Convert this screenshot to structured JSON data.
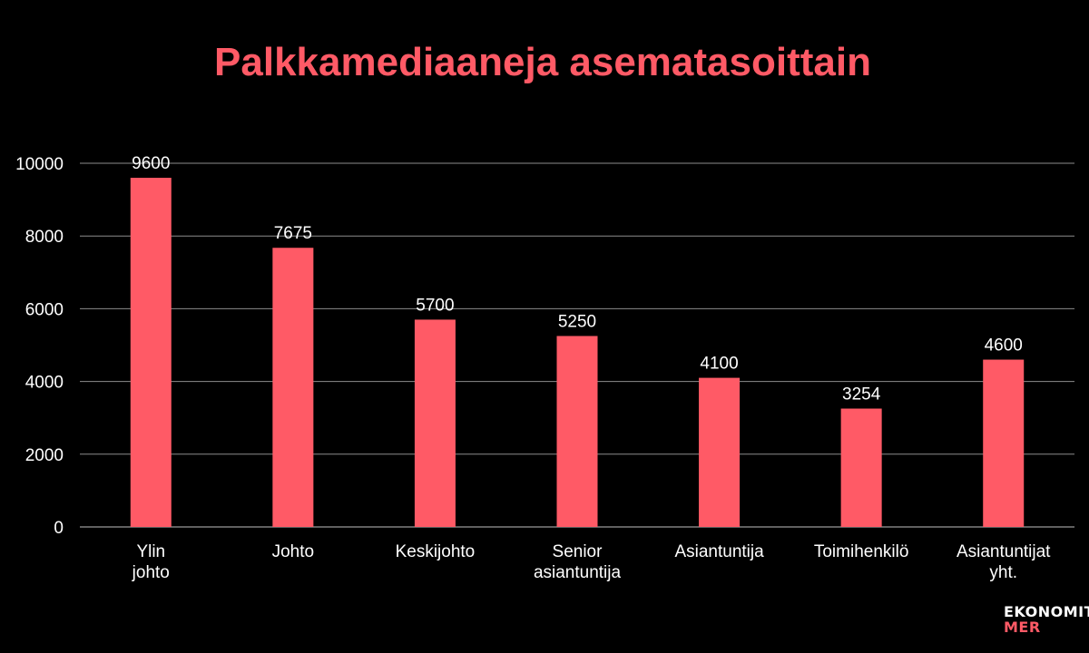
{
  "chart_data": {
    "type": "bar",
    "title": "Palkkamediaaneja asematasoittain",
    "categories": [
      "Ylin johto",
      "Johto",
      "Keskijohto",
      "Senior asiantuntija",
      "Asiantuntija",
      "Toimihenkilö",
      "Asiantuntijat yht."
    ],
    "values": [
      9600,
      7675,
      5700,
      5250,
      4100,
      3254,
      4600
    ],
    "data_labels": [
      "9600",
      "7675",
      "5700",
      "5250",
      "4100",
      "3254",
      "4600"
    ],
    "yticks": [
      "0",
      "2000",
      "4000",
      "6000",
      "8000",
      "10000"
    ],
    "ytick_values": [
      0,
      2000,
      4000,
      6000,
      8000,
      10000
    ],
    "ylim": [
      0,
      10000
    ],
    "xlabel": "",
    "ylabel": "",
    "grid": true,
    "legend": "none",
    "colors": {
      "bar": "#FF5A66",
      "title": "#FF5A66",
      "text": "#FFFFFF",
      "grid": "#8C8C8C",
      "background": "#000000"
    }
  },
  "logo": {
    "line1": "EKONOMIT",
    "line2": "MER"
  }
}
